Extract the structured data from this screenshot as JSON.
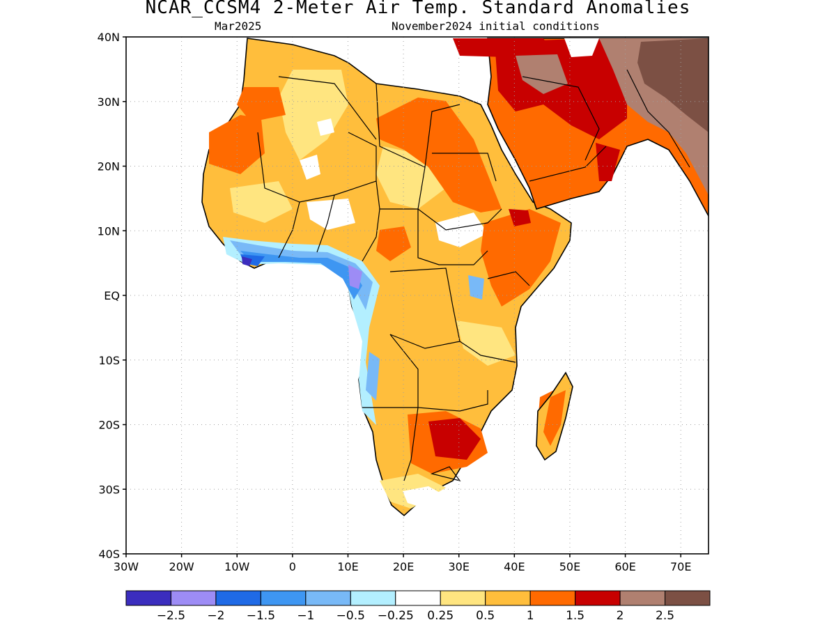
{
  "title": "NCAR_CCSM4 2-Meter Air Temp. Standard Anomalies",
  "subtitle_left": "Mar2025",
  "subtitle_right": "November2024 initial conditions",
  "map": {
    "lon_range": [
      -30,
      75
    ],
    "lat_range": [
      -40,
      40
    ],
    "lon_ticks": [
      "30W",
      "20W",
      "10W",
      "0",
      "10E",
      "20E",
      "30E",
      "40E",
      "50E",
      "60E",
      "70E"
    ],
    "lat_ticks": [
      "40N",
      "30N",
      "20N",
      "10N",
      "EQ",
      "10S",
      "20S",
      "30S",
      "40S"
    ],
    "grid": "dotted",
    "ocean_color": "#ffffff",
    "coastline_color": "#000000"
  },
  "colorbar": {
    "colors": [
      "#3b2dbe",
      "#9d8cf5",
      "#1f6ae6",
      "#3e96f2",
      "#78b9f7",
      "#b3efff",
      "#ffffff",
      "#ffe580",
      "#ffbe3c",
      "#ff6a00",
      "#c80000",
      "#b08070",
      "#7c5044"
    ],
    "labels": [
      "-2.5",
      "-2",
      "-1.5",
      "-1",
      "-0.5",
      "-0.25",
      "0.25",
      "0.5",
      "1",
      "1.5",
      "2",
      "2.5"
    ]
  }
}
